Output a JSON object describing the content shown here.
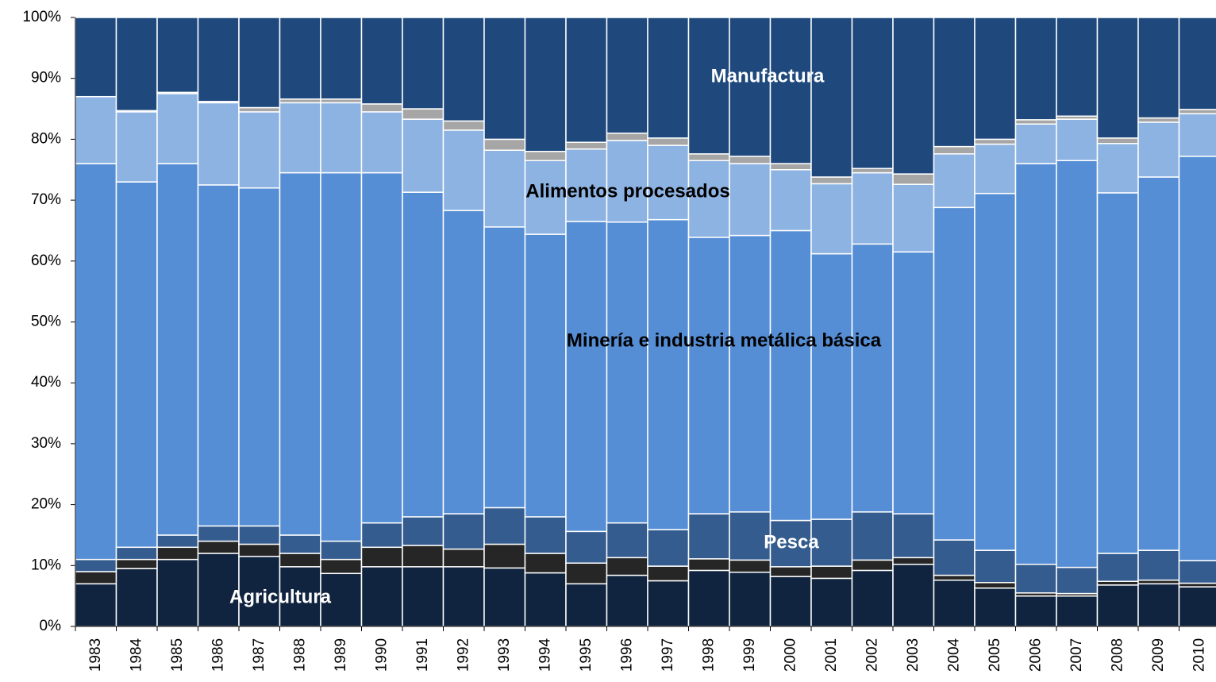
{
  "chart_data": {
    "type": "stacked_bar",
    "categories": [
      "1983",
      "1984",
      "1985",
      "1986",
      "1987",
      "1988",
      "1989",
      "1990",
      "1991",
      "1992",
      "1993",
      "1994",
      "1995",
      "1996",
      "1997",
      "1998",
      "1999",
      "2000",
      "2001",
      "2002",
      "2003",
      "2004",
      "2005",
      "2006",
      "2007",
      "2008",
      "2009",
      "2010"
    ],
    "series": [
      {
        "name": "Agricultura",
        "color": "#10243f",
        "values": [
          7,
          9.5,
          11,
          12,
          11.5,
          9.8,
          8.7,
          9.8,
          9.8,
          9.8,
          9.6,
          8.8,
          7,
          8.4,
          7.5,
          9.2,
          8.9,
          8.2,
          7.9,
          9.2,
          10.2,
          7.6,
          6.3,
          5,
          5,
          6.8,
          7,
          6.5
        ]
      },
      {
        "color": "#262626",
        "values": [
          2,
          1.5,
          2,
          2,
          2,
          2.2,
          2.3,
          3.2,
          3.5,
          2.9,
          3.9,
          3.2,
          3.4,
          2.9,
          2.4,
          1.9,
          2,
          1.6,
          2,
          1.7,
          1.1,
          0.8,
          0.9,
          0.5,
          0.4,
          0.6,
          0.6,
          0.6
        ]
      },
      {
        "name": "Pesca",
        "color": "#355c8f",
        "values": [
          2,
          2,
          2,
          2.5,
          3,
          3,
          3,
          4,
          4.7,
          5.8,
          6,
          6,
          5.2,
          5.7,
          6,
          7.4,
          7.9,
          7.6,
          7.7,
          7.9,
          7.2,
          5.8,
          5.3,
          4.7,
          4.3,
          4.6,
          4.9,
          3.7
        ]
      },
      {
        "name": "Minería e industria metálica básica",
        "color": "#558ed5",
        "values": [
          65,
          60,
          61,
          56,
          55.5,
          59.5,
          60.5,
          57.5,
          53.3,
          49.8,
          46.1,
          46.4,
          50.9,
          49.4,
          50.9,
          45.4,
          45.4,
          47.6,
          43.6,
          44,
          43,
          54.6,
          58.6,
          65.8,
          66.8,
          59.2,
          61.3,
          66.4
        ]
      },
      {
        "name": "Alimentos procesados",
        "color": "#8db3e2",
        "values": [
          11,
          11.5,
          11.5,
          13.5,
          12.5,
          11.5,
          11.5,
          10,
          12,
          13.2,
          12.6,
          12.1,
          11.9,
          13.4,
          12.2,
          12.6,
          11.8,
          10,
          11.5,
          11.7,
          11.1,
          8.8,
          8.1,
          6.5,
          6.8,
          8.1,
          9,
          7
        ]
      },
      {
        "color": "#a6a6a6",
        "values": [
          0,
          0.2,
          0.2,
          0.2,
          0.7,
          0.6,
          0.6,
          1.3,
          1.7,
          1.5,
          1.8,
          1.5,
          1.1,
          1.2,
          1.2,
          1.1,
          1.2,
          1,
          1.1,
          0.7,
          1.7,
          1.2,
          0.8,
          0.7,
          0.5,
          0.9,
          0.7,
          0.7
        ]
      },
      {
        "name": "Manufactura",
        "color": "#1f497d",
        "values": [
          13,
          15.3,
          12.3,
          13.8,
          14.8,
          13.4,
          13.4,
          14.2,
          15,
          17,
          20,
          22,
          20.5,
          19,
          19.8,
          22.4,
          22.8,
          24,
          26.2,
          24.8,
          25.7,
          21.2,
          20,
          16.8,
          16.2,
          19.8,
          16.5,
          15.1
        ]
      }
    ],
    "ylim": [
      0,
      100
    ],
    "yticks": [
      {
        "value": 0,
        "label": "0%"
      },
      {
        "value": 10,
        "label": "10%"
      },
      {
        "value": 20,
        "label": "20%"
      },
      {
        "value": 30,
        "label": "30%"
      },
      {
        "value": 40,
        "label": "40%"
      },
      {
        "value": 50,
        "label": "50%"
      },
      {
        "value": 60,
        "label": "60%"
      },
      {
        "value": 70,
        "label": "70%"
      },
      {
        "value": 80,
        "label": "80%"
      },
      {
        "value": 90,
        "label": "90%"
      },
      {
        "value": 100,
        "label": "100%"
      }
    ]
  }
}
